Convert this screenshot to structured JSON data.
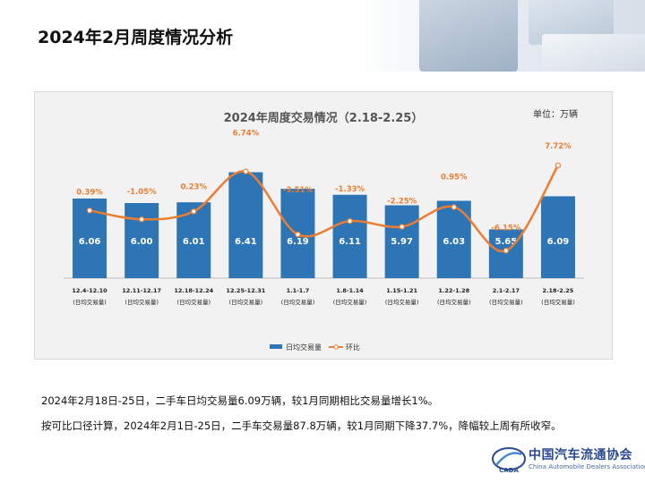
{
  "page": {
    "title": "2024年2月周度情况分析",
    "caption_line1": "2024年2月18日-25日，二手车日均交易量6.09万辆，较1月同期相比交易量增长1%。",
    "caption_line2": "按可比口径计算，2024年2月1日-25日，二手车交易量87.8万辆，较1月同期下降37.7%，降幅较上周有所收窄。"
  },
  "logo": {
    "name_cn": "中国汽车流通协会",
    "name_en": "China Automobile Dealers Association",
    "mark_text": "CADA"
  },
  "chart_data": {
    "type": "bar",
    "title": "2024年周度交易情况（2.18-2.25）",
    "unit": "单位：万辆",
    "categories": [
      "12.4-12.10",
      "12.11-12.17",
      "12.18-12.24",
      "12.25-12.31",
      "1.1-1.7",
      "1.8-1.14",
      "1.15-1.21",
      "1.22-1.28",
      "2.1-2.17",
      "2.18-2.25"
    ],
    "category_sublabel": "(日均交易量)",
    "series": [
      {
        "name": "日均交易量",
        "type": "bar",
        "color": "#2e75b6",
        "values": [
          6.06,
          6.0,
          6.01,
          6.41,
          6.19,
          6.11,
          5.97,
          6.03,
          5.65,
          6.09
        ]
      },
      {
        "name": "环比",
        "type": "line",
        "color": "#ed7d31",
        "values": [
          "0.39%",
          "-1.05%",
          "0.23%",
          "6.74%",
          "-3.51%",
          "-1.33%",
          "-2.25%",
          "0.95%",
          "-6.15%",
          "7.72%"
        ]
      }
    ],
    "legend": "bottom",
    "grid": false
  }
}
